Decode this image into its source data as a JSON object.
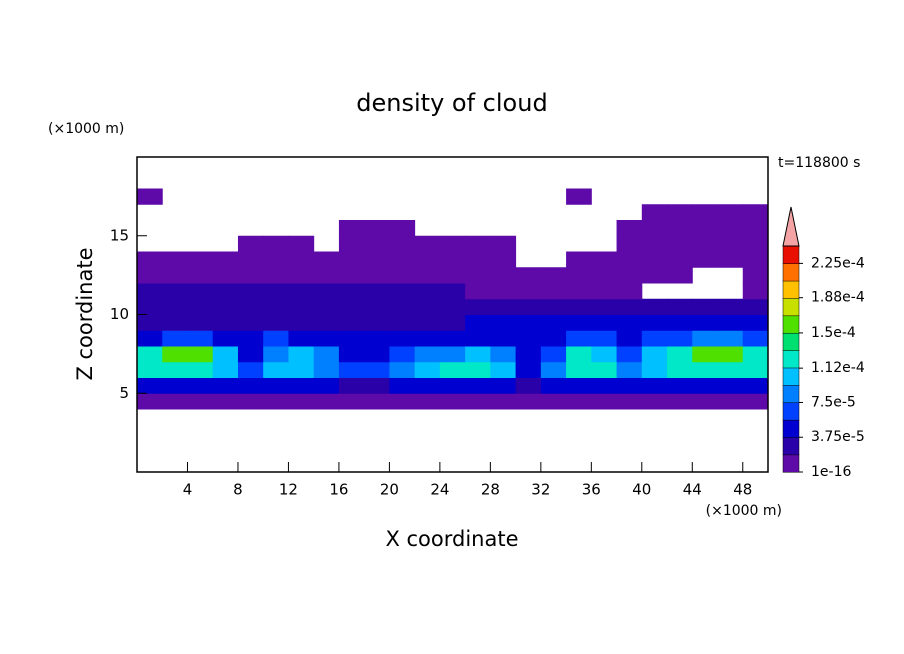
{
  "chart_data": {
    "type": "contour",
    "title": "density of cloud",
    "x_label": "X coordinate",
    "y_label": "Z coordinate",
    "x_unit": "(×1000 m)",
    "y_unit": "(×1000 m)",
    "time_label": "t=118800 s",
    "xlim": [
      0,
      50
    ],
    "ylim": [
      0,
      20
    ],
    "xticks": [
      4,
      8,
      12,
      16,
      20,
      24,
      28,
      32,
      36,
      40,
      44,
      48
    ],
    "yticks": [
      5,
      10,
      15
    ],
    "x": [
      1,
      3,
      5,
      7,
      9,
      11,
      13,
      15,
      17,
      19,
      21,
      23,
      25,
      27,
      29,
      31,
      33,
      35,
      37,
      39,
      41,
      43,
      45,
      47,
      49
    ],
    "y": [
      4.5,
      5.5,
      6.5,
      7.5,
      8.5,
      9.5,
      10.5,
      11.5,
      12.5,
      13.5,
      14.5,
      15.5,
      16.5,
      17.5
    ],
    "z": [
      [
        1e-05,
        1e-05,
        1e-05,
        1e-05,
        1e-05,
        1e-05,
        1e-05,
        1e-05,
        1e-05,
        1e-05,
        1e-05,
        1e-05,
        1e-05,
        1e-05,
        1e-05,
        1e-05,
        1e-05,
        1e-05,
        1e-05,
        1e-05,
        1e-05,
        1e-05,
        1e-05,
        1e-05,
        1e-05
      ],
      [
        4e-05,
        4e-05,
        4e-05,
        4e-05,
        4e-05,
        4e-05,
        4e-05,
        4e-05,
        3e-05,
        3e-05,
        4e-05,
        4e-05,
        4e-05,
        4e-05,
        4e-05,
        2e-05,
        4e-05,
        4e-05,
        4e-05,
        4e-05,
        4e-05,
        4e-05,
        4e-05,
        4e-05,
        4e-05
      ],
      [
        0.00012,
        0.00013,
        0.00013,
        0.0001,
        7e-05,
        0.00011,
        0.00011,
        9e-05,
        6e-05,
        6e-05,
        8e-05,
        0.00011,
        0.00012,
        0.00012,
        0.0001,
        5e-05,
        8e-05,
        0.00012,
        0.00012,
        8e-05,
        0.0001,
        0.00012,
        0.00013,
        0.00013,
        0.00012
      ],
      [
        0.00013,
        0.00015,
        0.00015,
        0.0001,
        5e-05,
        9e-05,
        0.0001,
        8e-05,
        5e-05,
        5e-05,
        6e-05,
        8e-05,
        9e-05,
        0.0001,
        8e-05,
        4e-05,
        7e-05,
        0.00012,
        0.00011,
        7e-05,
        0.00011,
        0.00013,
        0.00015,
        0.00016,
        0.00013
      ],
      [
        5e-05,
        6e-05,
        6e-05,
        5e-05,
        4e-05,
        6e-05,
        5e-05,
        5e-05,
        4e-05,
        4e-05,
        4e-05,
        4e-05,
        5e-05,
        5e-05,
        5e-05,
        4e-05,
        5e-05,
        6e-05,
        6e-05,
        5e-05,
        6e-05,
        7e-05,
        8e-05,
        8e-05,
        7e-05
      ],
      [
        3e-05,
        3e-05,
        3e-05,
        3e-05,
        3e-05,
        3e-05,
        3e-05,
        3e-05,
        3e-05,
        3e-05,
        3e-05,
        3e-05,
        3e-05,
        4e-05,
        4e-05,
        4e-05,
        4e-05,
        4e-05,
        4e-05,
        4e-05,
        4e-05,
        4e-05,
        4e-05,
        4e-05,
        4e-05
      ],
      [
        2e-05,
        2e-05,
        2e-05,
        2e-05,
        2e-05,
        2e-05,
        2e-05,
        2e-05,
        2e-05,
        2e-05,
        2e-05,
        2e-05,
        2e-05,
        2e-05,
        2e-05,
        2e-05,
        2e-05,
        2e-05,
        2e-05,
        2e-05,
        2e-05,
        2e-05,
        2e-05,
        2e-05,
        2e-05
      ],
      [
        2e-05,
        2e-05,
        2e-05,
        2e-05,
        2e-05,
        2e-05,
        2e-05,
        2e-05,
        2e-05,
        2e-05,
        2e-05,
        2e-05,
        2e-05,
        1e-05,
        1e-05,
        1e-05,
        1e-05,
        1e-05,
        1e-05,
        1e-05,
        0,
        0,
        0,
        0,
        1e-05
      ],
      [
        1e-05,
        1e-05,
        1e-05,
        1e-05,
        1e-05,
        1e-05,
        1e-05,
        1e-05,
        1e-05,
        1e-05,
        1e-05,
        1e-05,
        1e-05,
        1e-05,
        1e-05,
        1e-05,
        1e-05,
        1e-05,
        1e-05,
        1e-05,
        1e-05,
        1e-05,
        0,
        0,
        1e-05
      ],
      [
        5e-06,
        5e-06,
        5e-06,
        5e-06,
        5e-06,
        5e-06,
        5e-06,
        5e-06,
        5e-06,
        5e-06,
        5e-06,
        5e-06,
        5e-06,
        5e-06,
        5e-06,
        0,
        0,
        5e-06,
        5e-06,
        5e-06,
        5e-06,
        5e-06,
        5e-06,
        5e-06,
        5e-06
      ],
      [
        0,
        0,
        0,
        0,
        5e-06,
        5e-06,
        5e-06,
        0,
        5e-06,
        5e-06,
        5e-06,
        5e-06,
        5e-06,
        5e-06,
        5e-06,
        0,
        0,
        0,
        0,
        5e-06,
        5e-06,
        5e-06,
        5e-06,
        5e-06,
        5e-06
      ],
      [
        0,
        0,
        0,
        0,
        0,
        0,
        0,
        0,
        5e-06,
        5e-06,
        5e-06,
        0,
        0,
        0,
        0,
        0,
        0,
        0,
        0,
        5e-06,
        5e-06,
        5e-06,
        5e-06,
        5e-06,
        5e-06
      ],
      [
        0,
        0,
        0,
        0,
        0,
        0,
        0,
        0,
        0,
        0,
        0,
        0,
        0,
        0,
        0,
        0,
        0,
        0,
        0,
        0,
        5e-06,
        5e-06,
        5e-06,
        5e-06,
        5e-06
      ],
      [
        5e-06,
        0,
        0,
        0,
        0,
        0,
        0,
        0,
        0,
        0,
        0,
        0,
        0,
        0,
        0,
        0,
        0,
        5e-06,
        0,
        0,
        0,
        0,
        0,
        0,
        0
      ]
    ],
    "levels": [
      1e-16,
      1.875e-05,
      3.75e-05,
      5.625e-05,
      7.5e-05,
      9.375e-05,
      0.0001125,
      0.00013125,
      0.00015,
      0.00016875,
      0.0001875,
      0.00020625,
      0.000225,
      0.00024375
    ],
    "colors": [
      "#5e0aa8",
      "#2a00a8",
      "#0000d0",
      "#0040ff",
      "#0080ff",
      "#00c0ff",
      "#00e8c8",
      "#00e070",
      "#50e000",
      "#c8e000",
      "#ffc000",
      "#ff7000",
      "#e81000"
    ],
    "over_color": "#f4a4a4",
    "colorbar_ticks": [
      {
        "value": 1e-16,
        "label": "1e-16"
      },
      {
        "value": 3.75e-05,
        "label": "3.75e-5"
      },
      {
        "value": 7.5e-05,
        "label": "7.5e-5"
      },
      {
        "value": 0.000112,
        "label": "1.12e-4"
      },
      {
        "value": 0.00015,
        "label": "1.5e-4"
      },
      {
        "value": 0.000188,
        "label": "1.88e-4"
      },
      {
        "value": 0.000225,
        "label": "2.25e-4"
      }
    ]
  }
}
